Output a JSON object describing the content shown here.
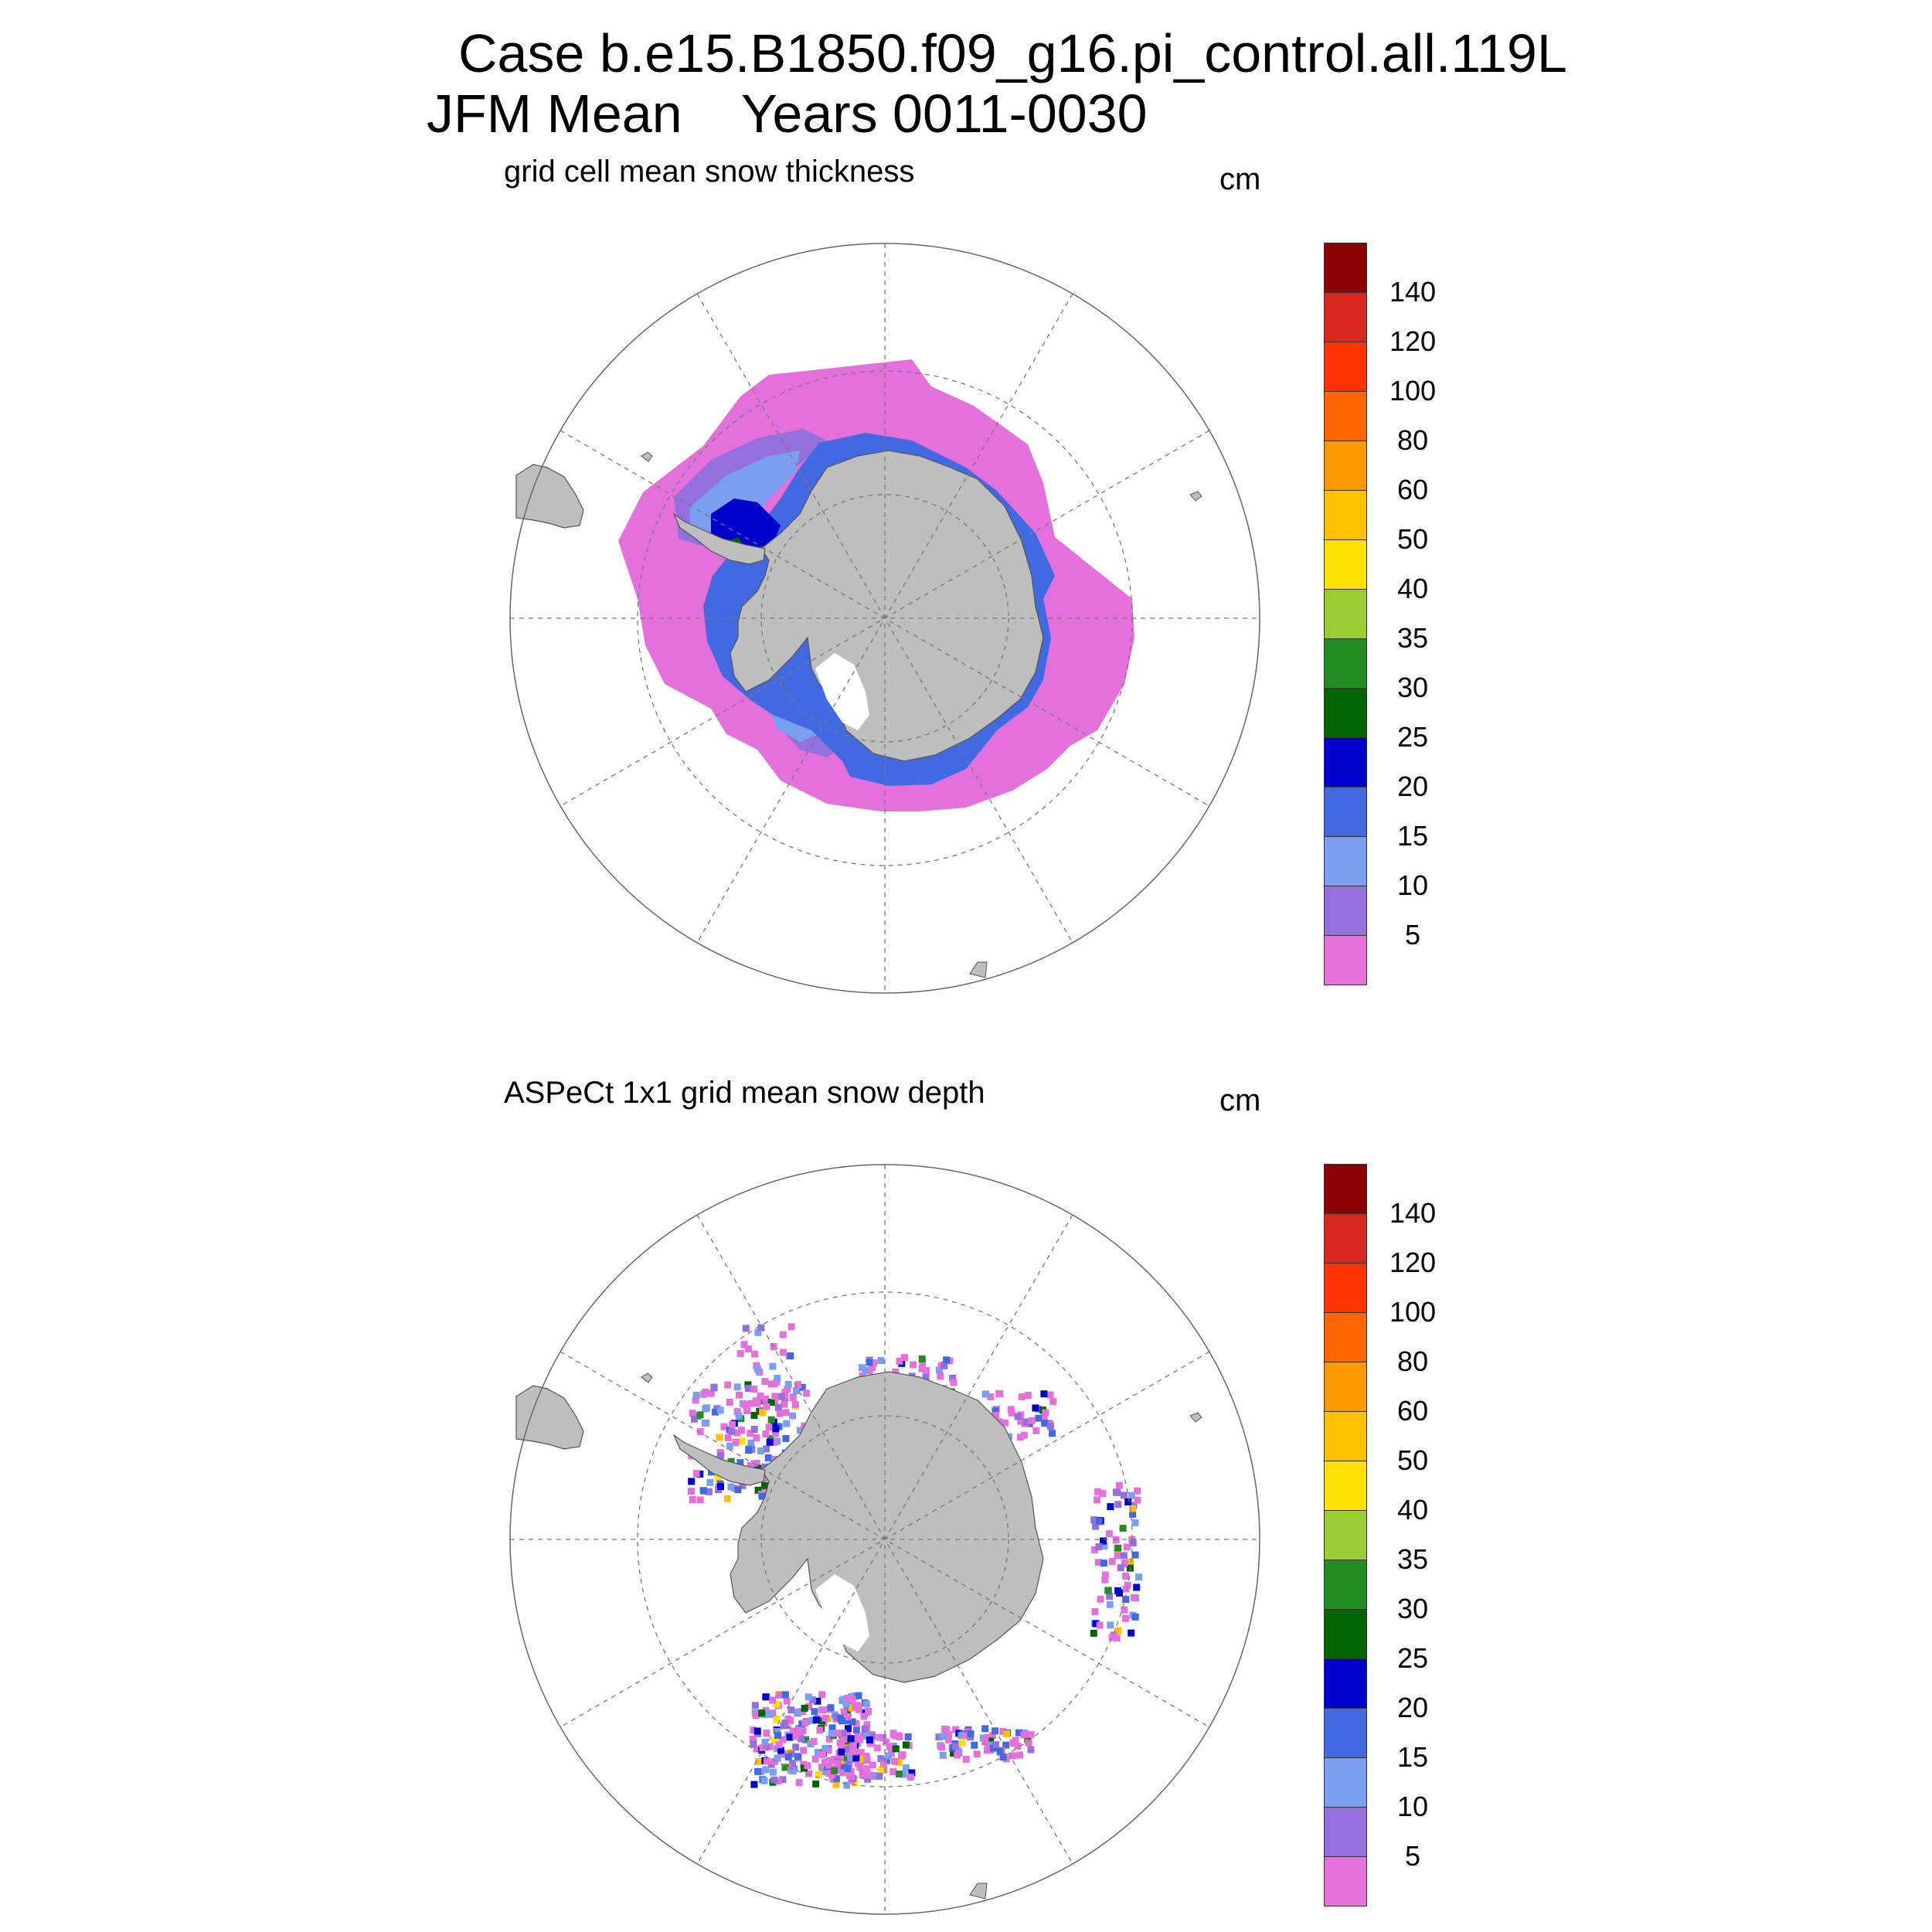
{
  "header": {
    "case_line": "Case b.e15.B1850.f09_g16.pi_control.all.119L",
    "period_line": "JFM Mean    Years 0011-0030"
  },
  "colorbar": {
    "labels": [
      "140",
      "120",
      "100",
      "80",
      "60",
      "50",
      "40",
      "35",
      "30",
      "25",
      "20",
      "15",
      "10",
      "5"
    ],
    "colors": [
      "#8b0000",
      "#d7261e",
      "#ff3300",
      "#ff6600",
      "#ff9900",
      "#ffc000",
      "#ffe000",
      "#9acd32",
      "#228b22",
      "#006400",
      "#0000cd",
      "#4169e1",
      "#7b9ff0",
      "#9370db",
      "#e370db"
    ]
  },
  "panels": [
    {
      "id": "model",
      "subtitle": "grid cell mean snow thickness",
      "units": "cm"
    },
    {
      "id": "obs",
      "subtitle": "ASPeCt 1x1 grid mean snow depth",
      "units": "cm"
    }
  ],
  "map": {
    "projection": "south polar stereographic",
    "land_color": "#bebebe",
    "grid_color": "#777777"
  }
}
